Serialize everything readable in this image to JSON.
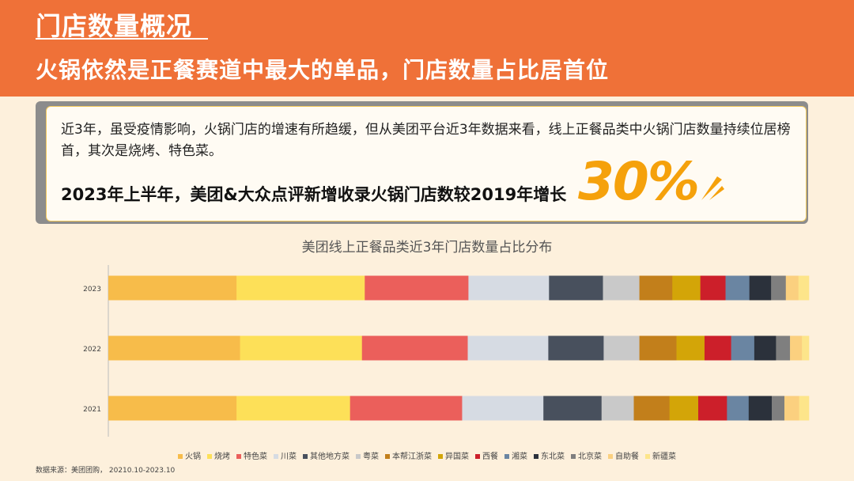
{
  "header": {
    "title": "门店数量概况",
    "subtitle": "火锅依然是正餐赛道中最大的单品，门店数量占比居首位"
  },
  "summary": {
    "text": "近3年，虽受疫情影响，火锅门店的增速有所趋缓，但从美团平台近3年数据来看，线上正餐品类中火锅门店数量持续位居榜首，其次是烧烤、特色菜。",
    "highlight": "2023年上半年，美团&大众点评新增收录火锅门店数较2019年增长",
    "big_number": "30%"
  },
  "source": "数据来源：美团团购， 20210.10-2023.10",
  "chart_data": {
    "type": "bar",
    "orientation": "horizontal",
    "stacked": true,
    "title": "美团线上正餐品类近3年门店数量占比分布",
    "categories": [
      "2023",
      "2022",
      "2021"
    ],
    "xlim": [
      0,
      100
    ],
    "legend_position": "bottom",
    "series": [
      {
        "name": "火锅",
        "color": "#f7bc4a",
        "values": [
          18.3,
          18.8,
          18.3
        ]
      },
      {
        "name": "烧烤",
        "color": "#fde058",
        "values": [
          18.3,
          17.4,
          16.2
        ]
      },
      {
        "name": "特色菜",
        "color": "#eb5f5b",
        "values": [
          14.8,
          15.1,
          16.0
        ]
      },
      {
        "name": "川菜",
        "color": "#d6dbe3",
        "values": [
          11.5,
          11.5,
          11.6
        ]
      },
      {
        "name": "其他地方菜",
        "color": "#48505d",
        "values": [
          7.7,
          7.9,
          8.3
        ]
      },
      {
        "name": "粤菜",
        "color": "#c9c9c9",
        "values": [
          5.2,
          5.1,
          4.6
        ]
      },
      {
        "name": "本帮江浙菜",
        "color": "#c27f1b",
        "values": [
          4.7,
          5.3,
          5.1
        ]
      },
      {
        "name": "异国菜",
        "color": "#d3a508",
        "values": [
          4.0,
          4.0,
          4.1
        ]
      },
      {
        "name": "西餐",
        "color": "#cc1f2a",
        "values": [
          3.6,
          3.8,
          4.1
        ]
      },
      {
        "name": "湘菜",
        "color": "#6a85a2",
        "values": [
          3.4,
          3.3,
          3.1
        ]
      },
      {
        "name": "东北菜",
        "color": "#2b313b",
        "values": [
          3.1,
          3.1,
          3.3
        ]
      },
      {
        "name": "北京菜",
        "color": "#7f7f7f",
        "values": [
          2.1,
          2.0,
          1.8
        ]
      },
      {
        "name": "自助餐",
        "color": "#fbd07f",
        "values": [
          1.8,
          1.7,
          2.1
        ]
      },
      {
        "name": "新疆菜",
        "color": "#fde58a",
        "values": [
          1.5,
          1.0,
          1.4
        ]
      }
    ]
  }
}
